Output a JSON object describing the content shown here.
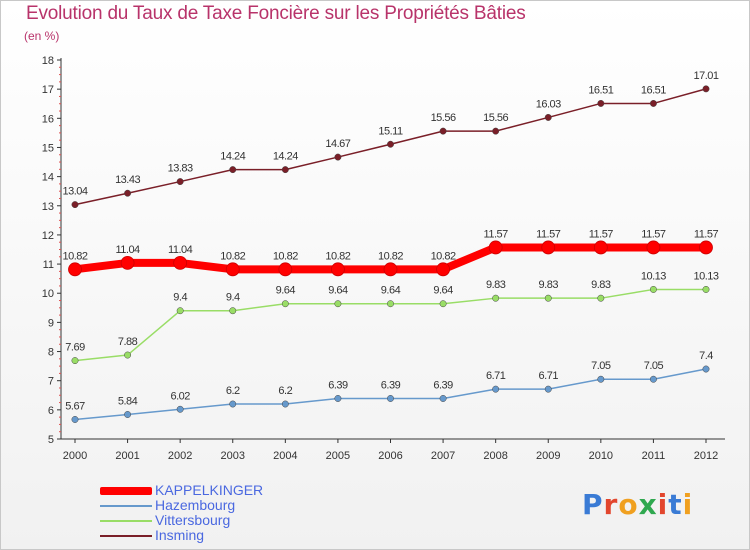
{
  "title": "Evolution du Taux de Taxe Foncière sur les Propriétés Bâties",
  "subtitle": "(en %)",
  "logo_text": "Proxiti",
  "chart_data": {
    "type": "line",
    "x": [
      "2000",
      "2001",
      "2002",
      "2003",
      "2004",
      "2005",
      "2006",
      "2007",
      "2008",
      "2009",
      "2010",
      "2011",
      "2012"
    ],
    "ylim": [
      5,
      18
    ],
    "yticks": [
      5,
      6,
      7,
      8,
      9,
      10,
      11,
      12,
      13,
      14,
      15,
      16,
      17,
      18
    ],
    "grid": false,
    "legend_position": "bottom-left",
    "series": [
      {
        "name": "Insming",
        "color": "#7a1f28",
        "values": [
          13.04,
          13.43,
          13.83,
          14.24,
          14.24,
          14.67,
          15.11,
          15.56,
          15.56,
          16.03,
          16.51,
          16.51,
          17.01
        ],
        "labels": [
          "13.04",
          "13.43",
          "13.83",
          "14.24",
          "14.24",
          "14.67",
          "15.11",
          "15.56",
          "15.56",
          "16.03",
          "16.51",
          "16.51",
          "17.01"
        ]
      },
      {
        "name": "KAPPELKINGER",
        "color": "#ff0000",
        "values": [
          10.82,
          11.04,
          11.04,
          10.82,
          10.82,
          10.82,
          10.82,
          10.82,
          11.57,
          11.57,
          11.57,
          11.57,
          11.57
        ],
        "labels": [
          "10.82",
          "11.04",
          "11.04",
          "10.82",
          "10.82",
          "10.82",
          "10.82",
          "10.82",
          "11.57",
          "11.57",
          "11.57",
          "11.57",
          "11.57"
        ]
      },
      {
        "name": "Vittersbourg",
        "color": "#99dd66",
        "values": [
          7.69,
          7.88,
          9.4,
          9.4,
          9.64,
          9.64,
          9.64,
          9.64,
          9.83,
          9.83,
          9.83,
          10.13,
          10.13
        ],
        "labels": [
          "7.69",
          "7.88",
          "9.4",
          "9.4",
          "9.64",
          "9.64",
          "9.64",
          "9.64",
          "9.83",
          "9.83",
          "9.83",
          "10.13",
          "10.13"
        ]
      },
      {
        "name": "Hazembourg",
        "color": "#6699cc",
        "values": [
          5.67,
          5.84,
          6.02,
          6.2,
          6.2,
          6.39,
          6.39,
          6.39,
          6.71,
          6.71,
          7.05,
          7.05,
          7.4
        ],
        "labels": [
          "5.67",
          "5.84",
          "6.02",
          "6.2",
          "6.2",
          "6.39",
          "6.39",
          "6.39",
          "6.71",
          "6.71",
          "7.05",
          "7.05",
          "7.4"
        ]
      }
    ]
  },
  "legend": [
    {
      "name": "KAPPELKINGER",
      "color": "#ff0000",
      "thickness": "thick"
    },
    {
      "name": "Hazembourg",
      "color": "#6699cc",
      "thickness": "thin"
    },
    {
      "name": "Vittersbourg",
      "color": "#99dd66",
      "thickness": "thin"
    },
    {
      "name": "Insming",
      "color": "#7a1f28",
      "thickness": "thin"
    }
  ]
}
